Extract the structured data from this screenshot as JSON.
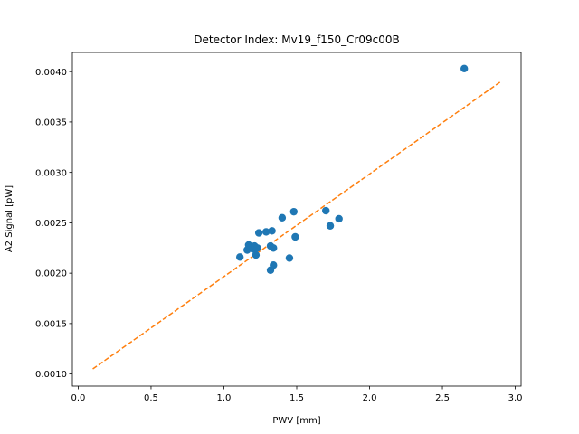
{
  "chart_data": {
    "type": "scatter",
    "title": "Detector Index: Mv19_f150_Cr09c00B",
    "xlabel": "PWV [mm]",
    "ylabel": "A2 Signal [pW]",
    "xlim": [
      -0.04,
      3.04
    ],
    "ylim": [
      0.00088,
      0.00419
    ],
    "xticks": [
      0.0,
      0.5,
      1.0,
      1.5,
      2.0,
      2.5,
      3.0
    ],
    "xtick_labels": [
      "0.0",
      "0.5",
      "1.0",
      "1.5",
      "2.0",
      "2.5",
      "3.0"
    ],
    "yticks": [
      0.001,
      0.0015,
      0.002,
      0.0025,
      0.003,
      0.0035,
      0.004
    ],
    "ytick_labels": [
      "0.0010",
      "0.0015",
      "0.0020",
      "0.0025",
      "0.0030",
      "0.0035",
      "0.0040"
    ],
    "grid": false,
    "series": [
      {
        "name": "data",
        "kind": "scatter",
        "color": "#1f77b4",
        "points": [
          [
            1.11,
            0.00216
          ],
          [
            1.16,
            0.00223
          ],
          [
            1.17,
            0.00228
          ],
          [
            1.2,
            0.00224
          ],
          [
            1.21,
            0.00227
          ],
          [
            1.22,
            0.00218
          ],
          [
            1.23,
            0.00225
          ],
          [
            1.24,
            0.0024
          ],
          [
            1.29,
            0.00241
          ],
          [
            1.32,
            0.00227
          ],
          [
            1.32,
            0.00203
          ],
          [
            1.33,
            0.00242
          ],
          [
            1.34,
            0.00225
          ],
          [
            1.34,
            0.00208
          ],
          [
            1.4,
            0.00255
          ],
          [
            1.45,
            0.00215
          ],
          [
            1.48,
            0.00261
          ],
          [
            1.49,
            0.00236
          ],
          [
            1.7,
            0.00262
          ],
          [
            1.73,
            0.00247
          ],
          [
            1.79,
            0.00254
          ],
          [
            2.65,
            0.00403
          ]
        ]
      },
      {
        "name": "fit",
        "kind": "line",
        "style": "dashed",
        "color": "#ff7f0e",
        "points": [
          [
            0.1,
            0.00105
          ],
          [
            2.9,
            0.0039
          ]
        ]
      }
    ]
  }
}
